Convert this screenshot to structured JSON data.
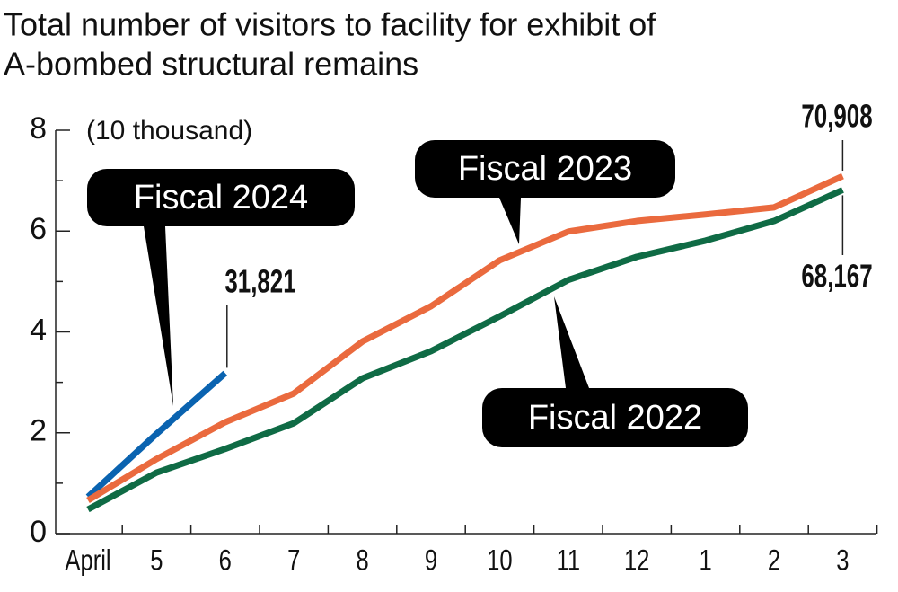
{
  "chart_data": {
    "type": "line",
    "title": [
      "Total number of visitors to facility for exhibit of",
      "A-bombed structural remains"
    ],
    "ylabel": "(10 thousand)",
    "categories": [
      "April",
      "5",
      "6",
      "7",
      "8",
      "9",
      "10",
      "11",
      "12",
      "1",
      "2",
      "3"
    ],
    "ylim": [
      0,
      8
    ],
    "yticks": [
      0,
      2,
      4,
      6,
      8
    ],
    "yminorticks": [
      1,
      3,
      5,
      7
    ],
    "series": [
      {
        "name": "Fiscal 2024",
        "color": "#0a63b0",
        "values": [
          0.73,
          1.98,
          3.1821,
          null,
          null,
          null,
          null,
          null,
          null,
          null,
          null,
          null
        ],
        "value_labels": [
          null,
          null,
          "31,821",
          null,
          null,
          null,
          null,
          null,
          null,
          null,
          null,
          null
        ]
      },
      {
        "name": "Fiscal 2023",
        "color": "#ea6a3e",
        "values": [
          0.66,
          1.48,
          2.21,
          2.78,
          3.81,
          4.51,
          5.42,
          5.99,
          6.2,
          6.33,
          6.47,
          7.0908
        ],
        "value_labels": [
          null,
          null,
          null,
          null,
          null,
          null,
          null,
          null,
          null,
          null,
          null,
          "70,908"
        ]
      },
      {
        "name": "Fiscal 2022",
        "color": "#0f6b45",
        "values": [
          0.48,
          1.21,
          1.68,
          2.19,
          3.08,
          3.62,
          4.31,
          5.03,
          5.49,
          5.81,
          6.2,
          6.8167
        ],
        "value_labels": [
          null,
          null,
          null,
          null,
          null,
          null,
          null,
          null,
          null,
          null,
          null,
          "68,167"
        ]
      }
    ]
  }
}
